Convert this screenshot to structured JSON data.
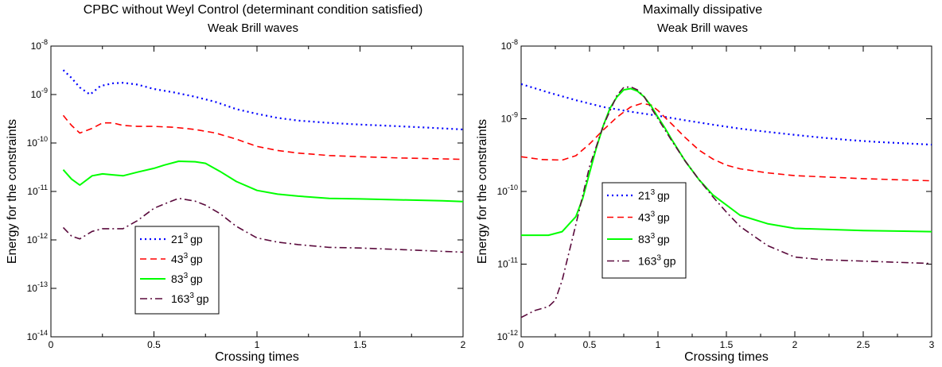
{
  "chart_data": [
    {
      "type": "line",
      "title": "CPBC without Weyl Control (determinant condition satisfied)",
      "subtitle": "Weak Brill waves",
      "xlabel": "Crossing times",
      "ylabel": "Energy for the constraints",
      "xlim": [
        0,
        2
      ],
      "ylim": [
        1e-14,
        1e-08
      ],
      "yscale": "log",
      "grid": false,
      "legend_position": "lower-left",
      "xticks": [
        "0",
        "0.5",
        "1",
        "1.5",
        "2"
      ],
      "yticks": [
        {
          "base": "10",
          "exp": "-8"
        },
        {
          "base": "10",
          "exp": "-9"
        },
        {
          "base": "10",
          "exp": "-10"
        },
        {
          "base": "10",
          "exp": "-11"
        },
        {
          "base": "10",
          "exp": "-12"
        },
        {
          "base": "10",
          "exp": "-13"
        },
        {
          "base": "10",
          "exp": "-14"
        }
      ],
      "series": [
        {
          "name": "21",
          "sup": "3",
          "unit": "gp",
          "color": "#0000ff",
          "style": "dotted",
          "x": [
            0.06,
            0.1,
            0.14,
            0.19,
            0.24,
            0.3,
            0.35,
            0.42,
            0.5,
            0.6,
            0.7,
            0.8,
            0.9,
            1.0,
            1.1,
            1.2,
            1.35,
            1.5,
            1.6,
            1.7,
            1.8,
            1.9,
            2.0
          ],
          "y": [
            3.2e-09,
            2.2e-09,
            1.4e-09,
            1e-09,
            1.5e-09,
            1.7e-09,
            1.75e-09,
            1.6e-09,
            1.3e-09,
            1.1e-09,
            9e-10,
            7e-10,
            5e-10,
            4e-10,
            3.3e-10,
            2.9e-10,
            2.6e-10,
            2.4e-10,
            2.3e-10,
            2.2e-10,
            2.1e-10,
            2e-10,
            1.9e-10
          ]
        },
        {
          "name": "43",
          "sup": "3",
          "unit": "gp",
          "color": "#ff0000",
          "style": "dashed",
          "x": [
            0.06,
            0.1,
            0.14,
            0.2,
            0.25,
            0.3,
            0.35,
            0.42,
            0.5,
            0.6,
            0.7,
            0.8,
            0.9,
            1.0,
            1.1,
            1.2,
            1.35,
            1.5,
            1.7,
            1.9,
            2.0
          ],
          "y": [
            3.7e-10,
            2.3e-10,
            1.6e-10,
            2e-10,
            2.6e-10,
            2.6e-10,
            2.3e-10,
            2.2e-10,
            2.2e-10,
            2.1e-10,
            1.9e-10,
            1.6e-10,
            1.2e-10,
            8.5e-11,
            7e-11,
            6.2e-11,
            5.5e-11,
            5.2e-11,
            4.9e-11,
            4.7e-11,
            4.6e-11
          ]
        },
        {
          "name": "83",
          "sup": "3",
          "unit": "gp",
          "color": "#00ff00",
          "style": "solid",
          "x": [
            0.06,
            0.1,
            0.14,
            0.2,
            0.25,
            0.3,
            0.35,
            0.42,
            0.5,
            0.55,
            0.62,
            0.7,
            0.75,
            0.82,
            0.9,
            1.0,
            1.1,
            1.2,
            1.35,
            1.5,
            1.7,
            1.9,
            2.0
          ],
          "y": [
            2.8e-11,
            1.8e-11,
            1.35e-11,
            2.1e-11,
            2.3e-11,
            2.2e-11,
            2.1e-11,
            2.5e-11,
            3e-11,
            3.5e-11,
            4.2e-11,
            4.1e-11,
            3.8e-11,
            2.6e-11,
            1.6e-11,
            1.05e-11,
            8.8e-12,
            8e-12,
            7.2e-12,
            7e-12,
            6.7e-12,
            6.4e-12,
            6.2e-12
          ]
        },
        {
          "name": "163",
          "sup": "3",
          "unit": "gp",
          "color": "#5a0a3c",
          "style": "dashdot",
          "x": [
            0.06,
            0.1,
            0.14,
            0.2,
            0.25,
            0.3,
            0.35,
            0.42,
            0.5,
            0.55,
            0.62,
            0.7,
            0.75,
            0.82,
            0.9,
            1.0,
            1.1,
            1.2,
            1.35,
            1.5,
            1.7,
            1.9,
            2.0
          ],
          "y": [
            1.8e-12,
            1.2e-12,
            1.05e-12,
            1.5e-12,
            1.7e-12,
            1.7e-12,
            1.7e-12,
            2.5e-12,
            4.5e-12,
            5.5e-12,
            7.2e-12,
            6.3e-12,
            5.2e-12,
            3.5e-12,
            1.9e-12,
            1.1e-12,
            9e-13,
            8e-13,
            7e-13,
            6.8e-13,
            6.3e-13,
            5.8e-13,
            5.6e-13
          ]
        }
      ]
    },
    {
      "type": "line",
      "title": "Maximally dissipative",
      "subtitle": "Weak Brill waves",
      "xlabel": "Crossing times",
      "ylabel": "Energy for the constraints",
      "xlim": [
        0,
        3
      ],
      "ylim": [
        1e-12,
        1e-08
      ],
      "yscale": "log",
      "grid": false,
      "legend_position": "middle-left",
      "xticks": [
        "0",
        "0.5",
        "1",
        "1.5",
        "2",
        "2.5",
        "3"
      ],
      "yticks": [
        {
          "base": "10",
          "exp": "-8"
        },
        {
          "base": "10",
          "exp": "-9"
        },
        {
          "base": "10",
          "exp": "-10"
        },
        {
          "base": "10",
          "exp": "-11"
        },
        {
          "base": "10",
          "exp": "-12"
        }
      ],
      "series": [
        {
          "name": "21",
          "sup": "3",
          "unit": "gp",
          "color": "#0000ff",
          "style": "dotted",
          "x": [
            0,
            0.2,
            0.4,
            0.6,
            0.8,
            1.0,
            1.2,
            1.4,
            1.6,
            1.8,
            2.0,
            2.2,
            2.4,
            2.6,
            2.8,
            3.0
          ],
          "y": [
            3e-09,
            2.3e-09,
            1.8e-09,
            1.45e-09,
            1.25e-09,
            1.1e-09,
            9.5e-10,
            8.3e-10,
            7.3e-10,
            6.6e-10,
            6e-10,
            5.5e-10,
            5.1e-10,
            4.8e-10,
            4.6e-10,
            4.4e-10
          ]
        },
        {
          "name": "43",
          "sup": "3",
          "unit": "gp",
          "color": "#ff0000",
          "style": "dashed",
          "x": [
            0,
            0.15,
            0.3,
            0.4,
            0.5,
            0.6,
            0.7,
            0.8,
            0.88,
            0.95,
            1.0,
            1.1,
            1.2,
            1.3,
            1.4,
            1.5,
            1.6,
            1.8,
            2.0,
            2.5,
            3.0
          ],
          "y": [
            3e-10,
            2.75e-10,
            2.7e-10,
            3.1e-10,
            4.5e-10,
            7e-10,
            1.05e-09,
            1.45e-09,
            1.62e-09,
            1.55e-09,
            1.3e-09,
            8.5e-10,
            5.5e-10,
            3.7e-10,
            2.8e-10,
            2.3e-10,
            2.05e-10,
            1.8e-10,
            1.65e-10,
            1.5e-10,
            1.4e-10
          ]
        },
        {
          "name": "83",
          "sup": "3",
          "unit": "gp",
          "color": "#00ff00",
          "style": "solid",
          "x": [
            0,
            0.2,
            0.3,
            0.4,
            0.45,
            0.5,
            0.55,
            0.6,
            0.65,
            0.7,
            0.75,
            0.8,
            0.85,
            0.9,
            0.95,
            1.0,
            1.05,
            1.1,
            1.2,
            1.3,
            1.4,
            1.5,
            1.6,
            1.8,
            2.0,
            2.5,
            3.0
          ],
          "y": [
            2.5e-11,
            2.5e-11,
            2.8e-11,
            4.5e-11,
            8e-11,
            1.8e-10,
            4e-10,
            8e-10,
            1.4e-09,
            2e-09,
            2.5e-09,
            2.6e-09,
            2.4e-09,
            2e-09,
            1.5e-09,
            1.05e-09,
            7.5e-10,
            5.2e-10,
            2.6e-10,
            1.45e-10,
            9e-11,
            6.5e-11,
            4.7e-11,
            3.6e-11,
            3.1e-11,
            2.9e-11,
            2.8e-11
          ]
        },
        {
          "name": "163",
          "sup": "3",
          "unit": "gp",
          "color": "#5a0a3c",
          "style": "dashdot",
          "x": [
            0,
            0.1,
            0.2,
            0.25,
            0.3,
            0.4,
            0.5,
            0.6,
            0.7,
            0.75,
            0.8,
            0.85,
            0.9,
            1.0,
            1.1,
            1.2,
            1.3,
            1.4,
            1.5,
            1.6,
            1.8,
            2.0,
            2.2,
            2.5,
            3.0
          ],
          "y": [
            1.85e-12,
            2.3e-12,
            2.6e-12,
            3.2e-12,
            6e-12,
            3.5e-11,
            2.2e-10,
            8e-10,
            2.1e-09,
            2.7e-09,
            2.75e-09,
            2.5e-09,
            2e-09,
            1e-09,
            5e-10,
            2.6e-10,
            1.45e-10,
            8.5e-11,
            5.2e-11,
            3.3e-11,
            1.8e-11,
            1.25e-11,
            1.15e-11,
            1.1e-11,
            1.02e-11
          ]
        }
      ]
    }
  ]
}
